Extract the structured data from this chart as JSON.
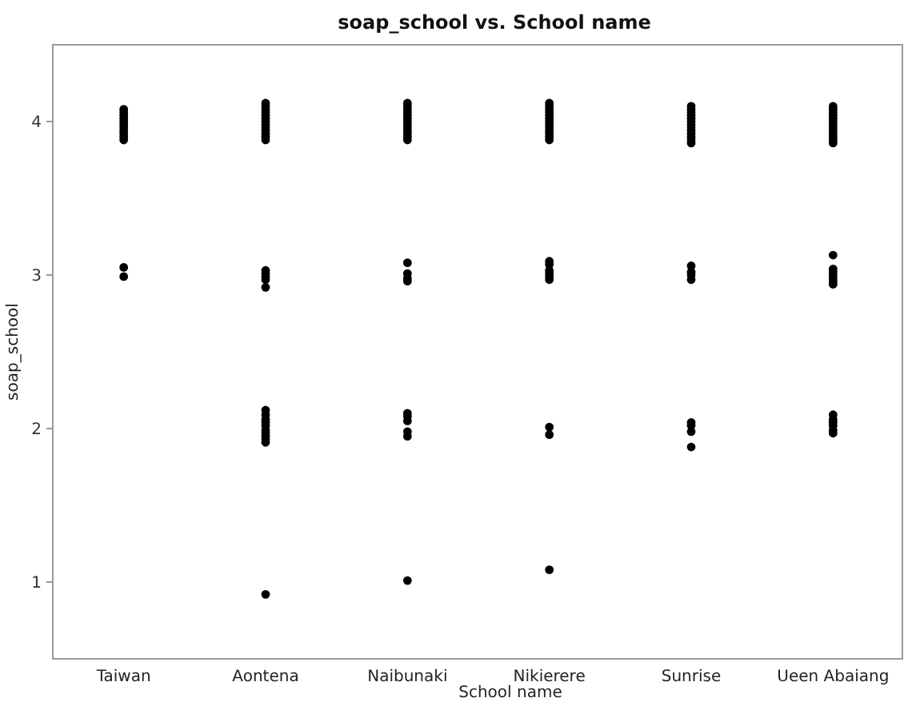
{
  "chart_data": {
    "type": "scatter",
    "title": "soap_school vs. School name",
    "xlabel": "School name",
    "ylabel": "soap_school",
    "categories": [
      "Taiwan",
      "Aontena",
      "Naibunaki",
      "Nikierere",
      "Sunrise",
      "Ueen Abaiang"
    ],
    "ylim": [
      0.5,
      4.5
    ],
    "yticks": [
      1,
      2,
      3,
      4
    ],
    "grid": false,
    "marker": "circle",
    "series": [
      {
        "color": "#000000",
        "x": [
          "Taiwan",
          "Taiwan",
          "Taiwan",
          "Taiwan",
          "Taiwan",
          "Taiwan",
          "Taiwan",
          "Taiwan",
          "Taiwan",
          "Taiwan",
          "Taiwan",
          "Taiwan",
          "Taiwan",
          "Aontena",
          "Aontena",
          "Aontena",
          "Aontena",
          "Aontena",
          "Aontena",
          "Aontena",
          "Aontena",
          "Aontena",
          "Aontena",
          "Aontena",
          "Aontena",
          "Aontena",
          "Aontena",
          "Aontena",
          "Aontena",
          "Aontena",
          "Aontena",
          "Aontena",
          "Aontena",
          "Aontena",
          "Aontena",
          "Aontena",
          "Aontena",
          "Aontena",
          "Aontena",
          "Aontena",
          "Aontena",
          "Aontena",
          "Naibunaki",
          "Naibunaki",
          "Naibunaki",
          "Naibunaki",
          "Naibunaki",
          "Naibunaki",
          "Naibunaki",
          "Naibunaki",
          "Naibunaki",
          "Naibunaki",
          "Naibunaki",
          "Naibunaki",
          "Naibunaki",
          "Naibunaki",
          "Naibunaki",
          "Naibunaki",
          "Naibunaki",
          "Naibunaki",
          "Naibunaki",
          "Naibunaki",
          "Naibunaki",
          "Naibunaki",
          "Naibunaki",
          "Nikierere",
          "Nikierere",
          "Nikierere",
          "Nikierere",
          "Nikierere",
          "Nikierere",
          "Nikierere",
          "Nikierere",
          "Nikierere",
          "Nikierere",
          "Nikierere",
          "Nikierere",
          "Nikierere",
          "Nikierere",
          "Nikierere",
          "Nikierere",
          "Nikierere",
          "Nikierere",
          "Nikierere",
          "Nikierere",
          "Nikierere",
          "Nikierere",
          "Sunrise",
          "Sunrise",
          "Sunrise",
          "Sunrise",
          "Sunrise",
          "Sunrise",
          "Sunrise",
          "Sunrise",
          "Sunrise",
          "Sunrise",
          "Sunrise",
          "Sunrise",
          "Sunrise",
          "Sunrise",
          "Sunrise",
          "Sunrise",
          "Sunrise",
          "Sunrise",
          "Sunrise",
          "Sunrise",
          "Sunrise",
          "Ueen Abaiang",
          "Ueen Abaiang",
          "Ueen Abaiang",
          "Ueen Abaiang",
          "Ueen Abaiang",
          "Ueen Abaiang",
          "Ueen Abaiang",
          "Ueen Abaiang",
          "Ueen Abaiang",
          "Ueen Abaiang",
          "Ueen Abaiang",
          "Ueen Abaiang",
          "Ueen Abaiang",
          "Ueen Abaiang",
          "Ueen Abaiang",
          "Ueen Abaiang",
          "Ueen Abaiang",
          "Ueen Abaiang",
          "Ueen Abaiang",
          "Ueen Abaiang",
          "Ueen Abaiang",
          "Ueen Abaiang",
          "Ueen Abaiang",
          "Ueen Abaiang",
          "Ueen Abaiang",
          "Ueen Abaiang"
        ],
        "values": [
          4.08,
          4.06,
          4.04,
          4.02,
          4.0,
          3.98,
          3.96,
          3.94,
          3.92,
          3.9,
          3.88,
          3.05,
          2.99,
          4.12,
          4.1,
          4.08,
          4.06,
          4.04,
          4.02,
          4.0,
          3.98,
          3.96,
          3.94,
          3.92,
          3.9,
          3.88,
          3.03,
          3.01,
          2.99,
          2.97,
          2.92,
          2.12,
          2.09,
          2.06,
          2.04,
          2.02,
          1.99,
          1.97,
          1.95,
          1.93,
          1.91,
          0.92,
          4.12,
          4.1,
          4.08,
          4.06,
          4.04,
          4.02,
          4.0,
          3.98,
          3.96,
          3.94,
          3.92,
          3.9,
          3.88,
          3.08,
          3.01,
          2.98,
          2.96,
          2.1,
          2.08,
          2.05,
          1.98,
          1.95,
          1.01,
          4.12,
          4.1,
          4.08,
          4.06,
          4.04,
          4.02,
          4.0,
          3.98,
          3.96,
          3.94,
          3.92,
          3.9,
          3.88,
          3.09,
          3.07,
          3.03,
          3.01,
          2.99,
          2.97,
          2.01,
          1.96,
          1.08,
          4.1,
          4.08,
          4.06,
          4.04,
          4.02,
          4.0,
          3.98,
          3.96,
          3.94,
          3.92,
          3.9,
          3.88,
          3.86,
          3.06,
          3.02,
          3.0,
          2.97,
          2.04,
          2.02,
          1.98,
          1.88,
          4.1,
          4.08,
          4.06,
          4.04,
          4.02,
          4.0,
          3.98,
          3.96,
          3.94,
          3.92,
          3.9,
          3.88,
          3.86,
          3.13,
          3.04,
          3.02,
          3.0,
          2.98,
          2.96,
          2.94,
          2.09,
          2.06,
          2.04,
          2.02,
          1.99,
          1.97
        ]
      }
    ]
  }
}
